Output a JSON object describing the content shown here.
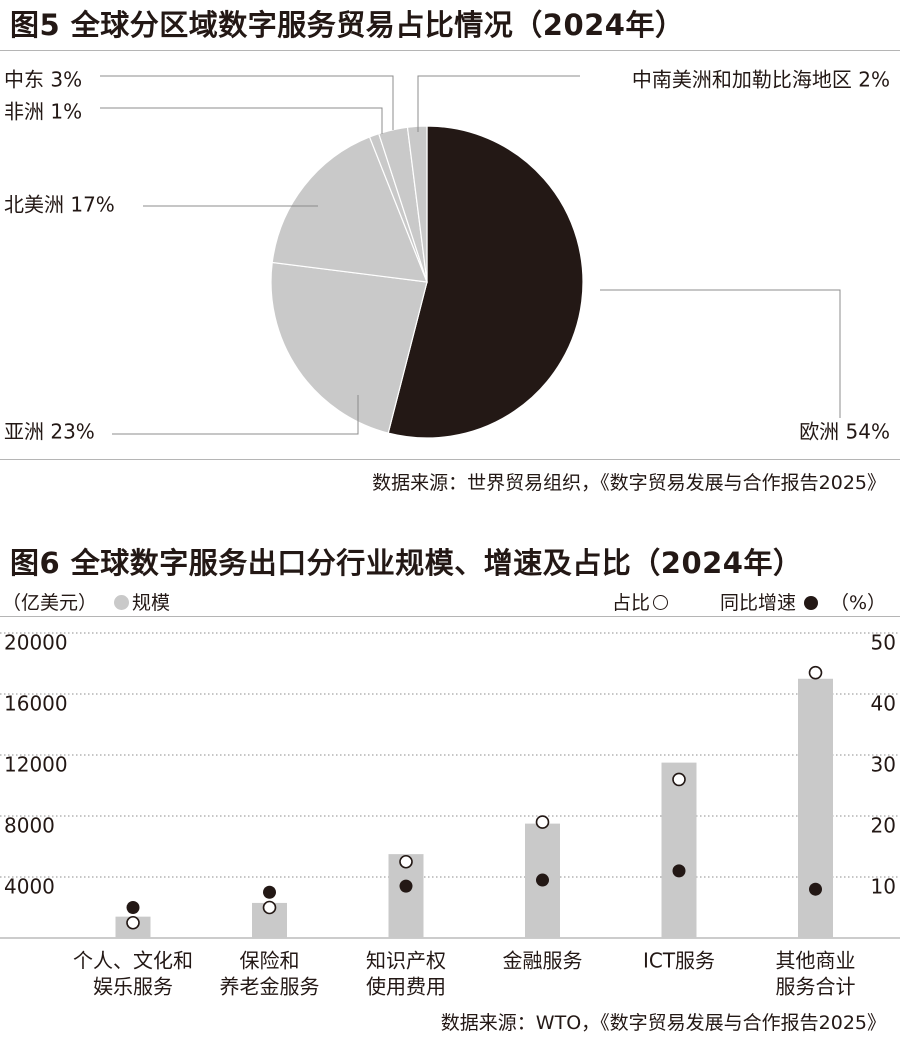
{
  "fig5": {
    "title": "图5 全球分区域数字服务贸易占比情况（2024年）",
    "source": "数据来源：世界贸易组织，《数字贸易发展与合作报告2025》",
    "colors": {
      "europe": "#231815",
      "others": "#c9c9c9",
      "leader": "#8c8c8c"
    }
  },
  "fig6": {
    "title": "图6 全球数字服务出口分行业规模、增速及占比（2024年）",
    "source": "数据来源：WTO，《数字贸易发展与合作报告2025》",
    "unit_left": "（亿美元）",
    "legend_scale": "规模",
    "legend_share": "占比",
    "legend_growth": "同比增速",
    "unit_right": "（%）",
    "colors": {
      "bar": "#c9c9c9",
      "dot": "#231815",
      "grid": "#8c8c8c"
    }
  },
  "chart_data": [
    {
      "type": "pie",
      "title": "图5 全球分区域数字服务贸易占比情况（2024年）",
      "slices": [
        {
          "label": "欧洲",
          "value": 54,
          "display": "欧洲 54%"
        },
        {
          "label": "亚洲",
          "value": 23,
          "display": "亚洲 23%"
        },
        {
          "label": "北美洲",
          "value": 17,
          "display": "北美洲 17%"
        },
        {
          "label": "非洲",
          "value": 1,
          "display": "非洲 1%"
        },
        {
          "label": "中东",
          "value": 3,
          "display": "中东 3%"
        },
        {
          "label": "中南美洲和加勒比海地区",
          "value": 2,
          "display": "中南美洲和加勒比海地区 2%"
        }
      ]
    },
    {
      "type": "bar",
      "title": "图6 全球数字服务出口分行业规模、增速及占比（2024年）",
      "categories": [
        [
          "个人、文化和",
          "娱乐服务"
        ],
        [
          "保险和",
          "养老金服务"
        ],
        [
          "知识产权",
          "使用费用"
        ],
        [
          "金融服务"
        ],
        [
          "ICT服务"
        ],
        [
          "其他商业",
          "服务合计"
        ]
      ],
      "series": [
        {
          "name": "规模",
          "axis": "left",
          "values": [
            1400,
            2300,
            5500,
            7500,
            11500,
            17000
          ]
        },
        {
          "name": "占比",
          "axis": "right",
          "marker": "open-circle",
          "values": [
            2.5,
            5,
            12.5,
            19,
            26,
            43.5
          ]
        },
        {
          "name": "同比增速",
          "axis": "right",
          "marker": "filled-circle",
          "values": [
            5,
            7.5,
            8.5,
            9.5,
            11,
            8
          ]
        }
      ],
      "ylim_left": [
        0,
        20000
      ],
      "yticks_left": [
        "4000",
        "8000",
        "12000",
        "16000",
        "20000"
      ],
      "ylim_right": [
        0,
        50
      ],
      "yticks_right": [
        "10",
        "20",
        "30",
        "40",
        "50"
      ],
      "ylabel_left": "（亿美元）",
      "ylabel_right": "（%）",
      "grid": true
    }
  ]
}
